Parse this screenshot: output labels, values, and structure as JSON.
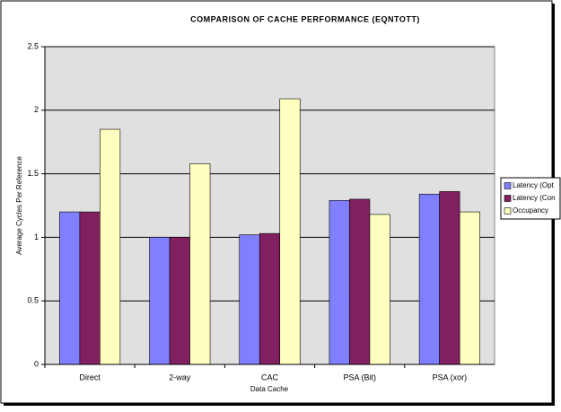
{
  "chart_data": {
    "type": "bar",
    "title": "COMPARISON OF CACHE PERFORMANCE (EQNTOTT)",
    "x_label": "Data Cache",
    "y_label": "Average Cycles Per Reference",
    "categories": [
      "Direct",
      "2-way",
      "CAC",
      "PSA (Bit)",
      "PSA (xor)"
    ],
    "series": [
      {
        "name": "Latency (Opt",
        "color": "#8080ff",
        "values": [
          1.2,
          1.0,
          1.02,
          1.29,
          1.34
        ]
      },
      {
        "name": "Latency (Con",
        "color": "#802060",
        "values": [
          1.2,
          1.0,
          1.03,
          1.3,
          1.36
        ]
      },
      {
        "name": "Occupancy",
        "color": "#ffffc0",
        "values": [
          1.85,
          1.58,
          2.09,
          1.18,
          1.2
        ]
      }
    ],
    "ylim": [
      0,
      2.5
    ],
    "yticks": [
      0,
      0.5,
      1,
      1.5,
      2,
      2.5
    ],
    "grid": true,
    "legend": "right"
  }
}
